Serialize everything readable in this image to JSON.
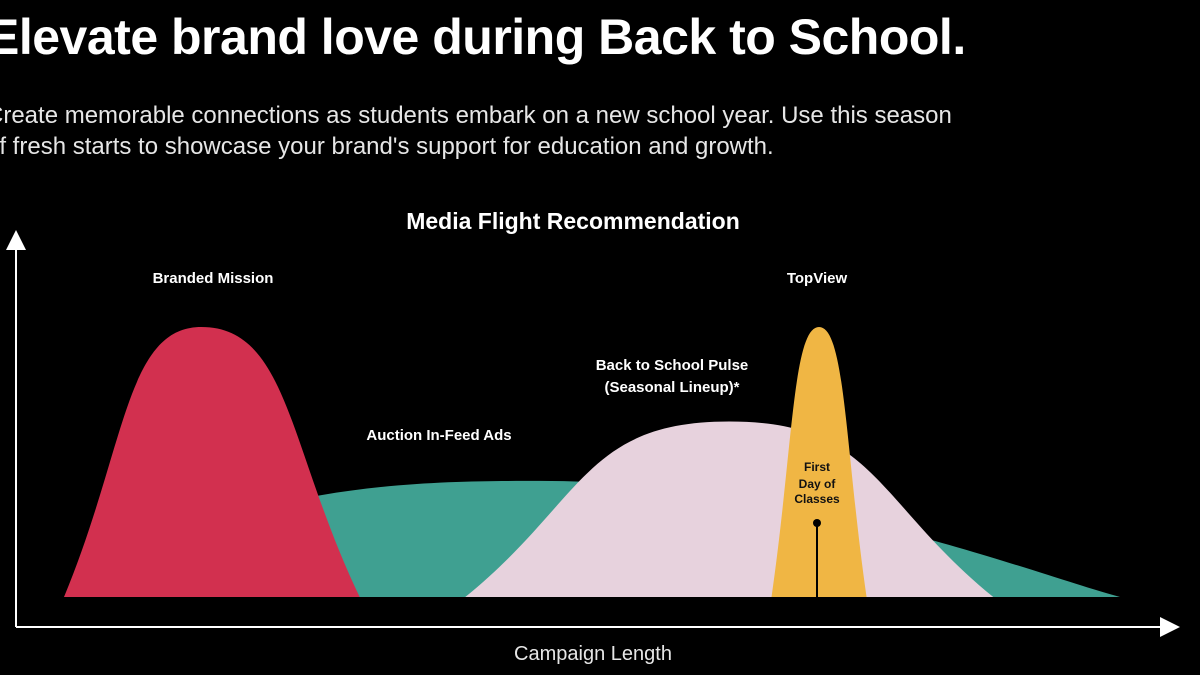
{
  "page": {
    "headline": "Elevate brand love during Back to School.",
    "subtext_line1": "Create memorable connections as students embark on a new school year. Use this season",
    "subtext_line2": "of fresh starts to showcase your brand's support for education and growth."
  },
  "colors": {
    "background": "#000000",
    "branded_mission": "#d2304f",
    "auction_in_feed": "#3fa091",
    "back_to_school_pulse": "#e7d2dd",
    "topview": "#f0b644",
    "axis": "#ffffff",
    "text": "#ffffff"
  },
  "chart_data": {
    "type": "area",
    "title": "Media Flight Recommendation",
    "xlabel": "Campaign Length",
    "ylabel": "",
    "xlim": [
      0,
      100
    ],
    "ylim": [
      0,
      100
    ],
    "grid": false,
    "legend": "none",
    "series": [
      {
        "key": "auction",
        "name": "Auction In-Feed Ads",
        "start": 0,
        "end": 100,
        "peak_x": 45,
        "peak": 43,
        "layer": 1
      },
      {
        "key": "pulse",
        "name": "Back to School Pulse",
        "name_line2": "(Seasonal Lineup)*",
        "start": 38,
        "end": 88,
        "peak_x": 63,
        "peak": 65,
        "layer": 2
      },
      {
        "key": "branded",
        "name": "Branded Mission",
        "start": 0,
        "end": 28,
        "peak_x": 13,
        "peak": 100,
        "layer": 3
      },
      {
        "key": "topview",
        "name": "TopView",
        "start": 67,
        "end": 76,
        "peak_x": 71.5,
        "peak": 100,
        "layer": 4
      }
    ],
    "annotations": [
      {
        "key": "first_day",
        "line1": "First",
        "line2": "Day of",
        "line3": "Classes",
        "x": 71.5
      }
    ]
  }
}
